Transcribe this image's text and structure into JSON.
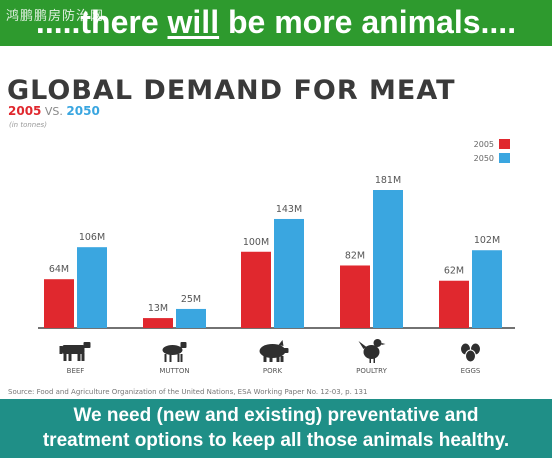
{
  "watermark": "鸿鹏鹏房防治网",
  "top_banner": {
    "part1": ".....there ",
    "part2": "will",
    "part3": " be more animals...."
  },
  "subtitle": {
    "year_a": "2005",
    "vs": " VS. ",
    "year_b": "2050"
  },
  "source": "Source: Food and Agriculture Organization of the United Nations, ESA Working Paper No. 12-03, p. 131",
  "bottom_banner": {
    "line1": "We need (new and existing) preventative and",
    "line2": "treatment options to keep all those animals healthy."
  },
  "colors": {
    "series_2005": "#e0282e",
    "series_2050": "#3aa6e0",
    "label": "#555555",
    "icon": "#2f2f2f"
  },
  "chart_data": {
    "type": "bar",
    "title": "GLOBAL DEMAND FOR MEAT",
    "units_note": "(in tonnes)",
    "categories": [
      "BEEF",
      "MUTTON",
      "PORK",
      "POULTRY",
      "EGGS"
    ],
    "category_icons": [
      "cow-icon",
      "sheep-icon",
      "pig-icon",
      "chicken-icon",
      "eggs-icon"
    ],
    "series": [
      {
        "name": "2005",
        "values": [
          64,
          13,
          100,
          82,
          62
        ],
        "labels": [
          "64M",
          "13M",
          "100M",
          "82M",
          "62M"
        ]
      },
      {
        "name": "2050",
        "values": [
          106,
          25,
          143,
          181,
          102
        ],
        "labels": [
          "106M",
          "25M",
          "143M",
          "181M",
          "102M"
        ]
      }
    ],
    "ylim": [
      0,
      181
    ],
    "grid": false,
    "legend_position": "top-right"
  }
}
